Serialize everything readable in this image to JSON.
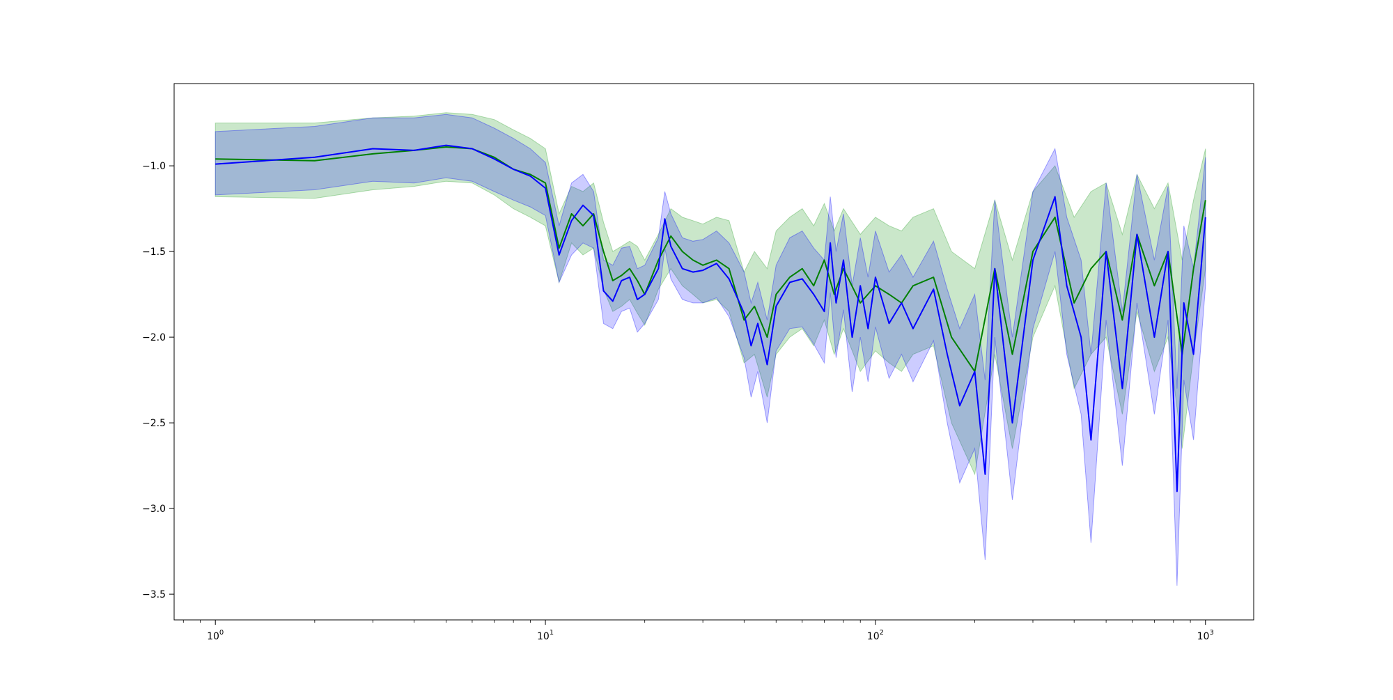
{
  "chart_data": {
    "type": "line",
    "title": "",
    "xlabel": "",
    "ylabel": "",
    "x_scale": "log",
    "xlim": [
      0.75,
      1400
    ],
    "ylim": [
      -3.65,
      -0.52
    ],
    "grid": false,
    "legend": "none",
    "x_ticks": [
      {
        "value": 1,
        "base": "10",
        "exp": "0"
      },
      {
        "value": 10,
        "base": "10",
        "exp": "1"
      },
      {
        "value": 100,
        "base": "10",
        "exp": "2"
      },
      {
        "value": 1000,
        "base": "10",
        "exp": "3"
      }
    ],
    "y_ticks": [
      {
        "value": -1.0,
        "label": "−1.0"
      },
      {
        "value": -1.5,
        "label": "−1.5"
      },
      {
        "value": -2.0,
        "label": "−2.0"
      },
      {
        "value": -2.5,
        "label": "−2.5"
      },
      {
        "value": -3.0,
        "label": "−3.0"
      },
      {
        "value": -3.5,
        "label": "−3.5"
      }
    ],
    "series": [
      {
        "color": "#008000",
        "band_color": "#2ca02c",
        "band_opacity": 0.25,
        "x": [
          1,
          2,
          3,
          4,
          5,
          6,
          7,
          8,
          9,
          10,
          11,
          12,
          13,
          14,
          15,
          16,
          17,
          18,
          19,
          20,
          22,
          24,
          26,
          28,
          30,
          33,
          36,
          40,
          43,
          47,
          50,
          55,
          60,
          65,
          70,
          75,
          80,
          90,
          100,
          110,
          120,
          130,
          150,
          170,
          200,
          230,
          260,
          300,
          350,
          400,
          450,
          500,
          560,
          620,
          700,
          770,
          850,
          920,
          1000
        ],
        "y": [
          -0.96,
          -0.97,
          -0.93,
          -0.91,
          -0.89,
          -0.9,
          -0.95,
          -1.02,
          -1.05,
          -1.1,
          -1.48,
          -1.28,
          -1.35,
          -1.28,
          -1.5,
          -1.67,
          -1.64,
          -1.6,
          -1.67,
          -1.75,
          -1.55,
          -1.41,
          -1.5,
          -1.55,
          -1.58,
          -1.55,
          -1.6,
          -1.9,
          -1.82,
          -2.0,
          -1.75,
          -1.65,
          -1.6,
          -1.7,
          -1.55,
          -1.75,
          -1.6,
          -1.8,
          -1.7,
          -1.75,
          -1.8,
          -1.7,
          -1.65,
          -2.0,
          -2.2,
          -1.6,
          -2.1,
          -1.5,
          -1.3,
          -1.8,
          -1.6,
          -1.5,
          -1.9,
          -1.4,
          -1.7,
          -1.5,
          -2.1,
          -1.6,
          -1.2
        ],
        "upper": [
          -0.75,
          -0.75,
          -0.72,
          -0.71,
          -0.69,
          -0.7,
          -0.73,
          -0.79,
          -0.84,
          -0.9,
          -1.28,
          -1.12,
          -1.15,
          -1.1,
          -1.33,
          -1.5,
          -1.47,
          -1.44,
          -1.47,
          -1.55,
          -1.4,
          -1.25,
          -1.3,
          -1.32,
          -1.34,
          -1.3,
          -1.32,
          -1.62,
          -1.5,
          -1.6,
          -1.38,
          -1.3,
          -1.25,
          -1.35,
          -1.22,
          -1.38,
          -1.25,
          -1.4,
          -1.3,
          -1.35,
          -1.38,
          -1.3,
          -1.25,
          -1.5,
          -1.6,
          -1.2,
          -1.55,
          -1.15,
          -1.0,
          -1.3,
          -1.15,
          -1.1,
          -1.4,
          -1.05,
          -1.25,
          -1.1,
          -1.55,
          -1.2,
          -0.9
        ],
        "lower": [
          -1.18,
          -1.19,
          -1.14,
          -1.12,
          -1.09,
          -1.1,
          -1.17,
          -1.25,
          -1.3,
          -1.35,
          -1.68,
          -1.45,
          -1.52,
          -1.48,
          -1.72,
          -1.85,
          -1.82,
          -1.78,
          -1.86,
          -1.93,
          -1.72,
          -1.6,
          -1.7,
          -1.75,
          -1.8,
          -1.78,
          -1.85,
          -2.15,
          -2.1,
          -2.35,
          -2.1,
          -2.0,
          -1.95,
          -2.05,
          -1.9,
          -2.1,
          -1.95,
          -2.2,
          -2.08,
          -2.15,
          -2.2,
          -2.1,
          -2.05,
          -2.5,
          -2.8,
          -2.1,
          -2.65,
          -2.0,
          -1.7,
          -2.3,
          -2.1,
          -2.0,
          -2.45,
          -1.85,
          -2.2,
          -2.0,
          -2.65,
          -2.1,
          -1.6
        ]
      },
      {
        "color": "#0000ff",
        "band_color": "#0000ff",
        "band_opacity": 0.2,
        "x": [
          1,
          2,
          3,
          4,
          5,
          6,
          7,
          8,
          9,
          10,
          11,
          12,
          13,
          14,
          15,
          16,
          17,
          18,
          19,
          20,
          22,
          23,
          24,
          26,
          28,
          30,
          33,
          36,
          40,
          42,
          44,
          47,
          50,
          55,
          60,
          65,
          70,
          73,
          76,
          80,
          85,
          90,
          95,
          100,
          110,
          120,
          130,
          150,
          165,
          180,
          200,
          215,
          230,
          260,
          300,
          350,
          380,
          420,
          450,
          500,
          560,
          620,
          700,
          770,
          820,
          860,
          920,
          1000
        ],
        "y": [
          -0.99,
          -0.95,
          -0.9,
          -0.91,
          -0.88,
          -0.9,
          -0.96,
          -1.02,
          -1.06,
          -1.13,
          -1.52,
          -1.32,
          -1.23,
          -1.29,
          -1.73,
          -1.79,
          -1.67,
          -1.65,
          -1.78,
          -1.75,
          -1.6,
          -1.31,
          -1.47,
          -1.6,
          -1.62,
          -1.61,
          -1.57,
          -1.66,
          -1.86,
          -2.05,
          -1.92,
          -2.16,
          -1.82,
          -1.68,
          -1.66,
          -1.75,
          -1.85,
          -1.45,
          -1.8,
          -1.55,
          -2.0,
          -1.7,
          -1.95,
          -1.65,
          -1.92,
          -1.8,
          -1.95,
          -1.72,
          -2.1,
          -2.4,
          -2.2,
          -2.8,
          -1.6,
          -2.5,
          -1.55,
          -1.18,
          -1.7,
          -2.0,
          -2.6,
          -1.5,
          -2.3,
          -1.4,
          -2.0,
          -1.5,
          -2.9,
          -1.8,
          -2.1,
          -1.3
        ],
        "upper": [
          -0.8,
          -0.77,
          -0.72,
          -0.72,
          -0.7,
          -0.72,
          -0.78,
          -0.84,
          -0.9,
          -0.98,
          -1.35,
          -1.1,
          -1.05,
          -1.15,
          -1.55,
          -1.58,
          -1.48,
          -1.47,
          -1.6,
          -1.58,
          -1.42,
          -1.15,
          -1.28,
          -1.42,
          -1.44,
          -1.43,
          -1.38,
          -1.45,
          -1.62,
          -1.8,
          -1.68,
          -1.9,
          -1.58,
          -1.42,
          -1.38,
          -1.48,
          -1.55,
          -1.18,
          -1.5,
          -1.28,
          -1.7,
          -1.42,
          -1.65,
          -1.38,
          -1.62,
          -1.52,
          -1.65,
          -1.44,
          -1.72,
          -1.95,
          -1.75,
          -2.25,
          -1.2,
          -2.0,
          -1.15,
          -0.9,
          -1.3,
          -1.55,
          -2.1,
          -1.1,
          -1.85,
          -1.05,
          -1.55,
          -1.12,
          -2.3,
          -1.35,
          -1.6,
          -0.95
        ],
        "lower": [
          -1.17,
          -1.14,
          -1.09,
          -1.1,
          -1.07,
          -1.09,
          -1.15,
          -1.2,
          -1.24,
          -1.29,
          -1.68,
          -1.52,
          -1.45,
          -1.48,
          -1.92,
          -1.95,
          -1.85,
          -1.83,
          -1.97,
          -1.92,
          -1.78,
          -1.48,
          -1.66,
          -1.78,
          -1.8,
          -1.8,
          -1.77,
          -1.88,
          -2.12,
          -2.35,
          -2.2,
          -2.5,
          -2.08,
          -1.95,
          -1.94,
          -2.04,
          -2.15,
          -1.74,
          -2.12,
          -1.84,
          -2.32,
          -2.0,
          -2.26,
          -1.94,
          -2.24,
          -2.1,
          -2.26,
          -2.02,
          -2.5,
          -2.85,
          -2.65,
          -3.3,
          -2.0,
          -2.95,
          -1.95,
          -1.5,
          -2.1,
          -2.45,
          -3.2,
          -1.9,
          -2.75,
          -1.8,
          -2.45,
          -1.9,
          -3.45,
          -2.25,
          -2.6,
          -1.7
        ]
      }
    ]
  }
}
